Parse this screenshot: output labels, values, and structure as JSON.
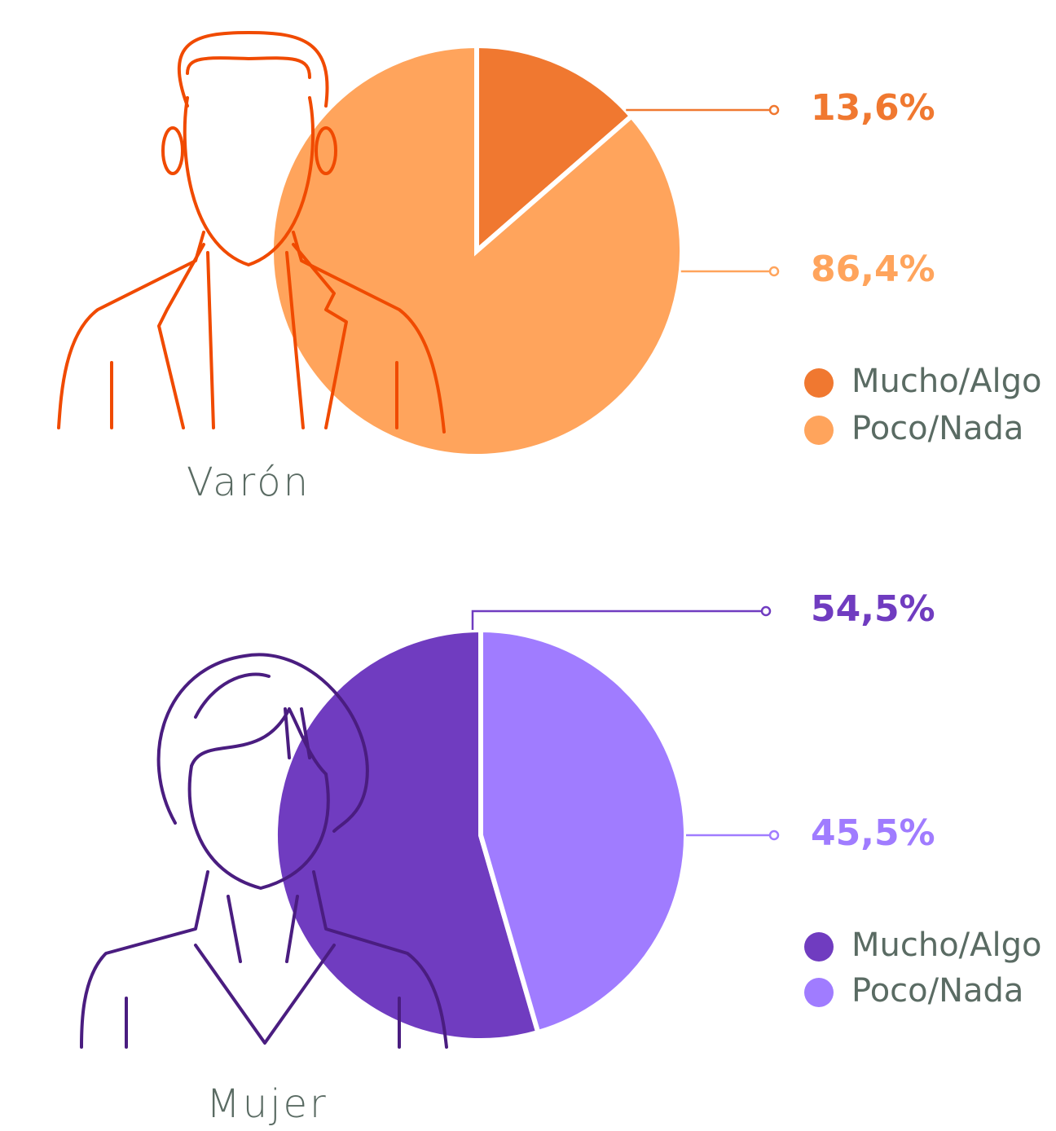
{
  "chart_data": [
    {
      "type": "pie",
      "title": "Varón",
      "categories": [
        "Mucho/Algo",
        "Poco/Nada"
      ],
      "values": [
        13.6,
        86.4
      ],
      "value_labels": [
        "13,6%",
        "86,4%"
      ],
      "colors": [
        "#f07830",
        "#ffa45c"
      ],
      "counterclock": false
    },
    {
      "type": "pie",
      "title": "Mujer",
      "categories": [
        "Mucho/Algo",
        "Poco/Nada"
      ],
      "values": [
        54.5,
        45.5
      ],
      "value_labels": [
        "54,5%",
        "45,5%"
      ],
      "colors": [
        "#703cc0",
        "#a07cff"
      ],
      "counterclock": true
    }
  ]
}
